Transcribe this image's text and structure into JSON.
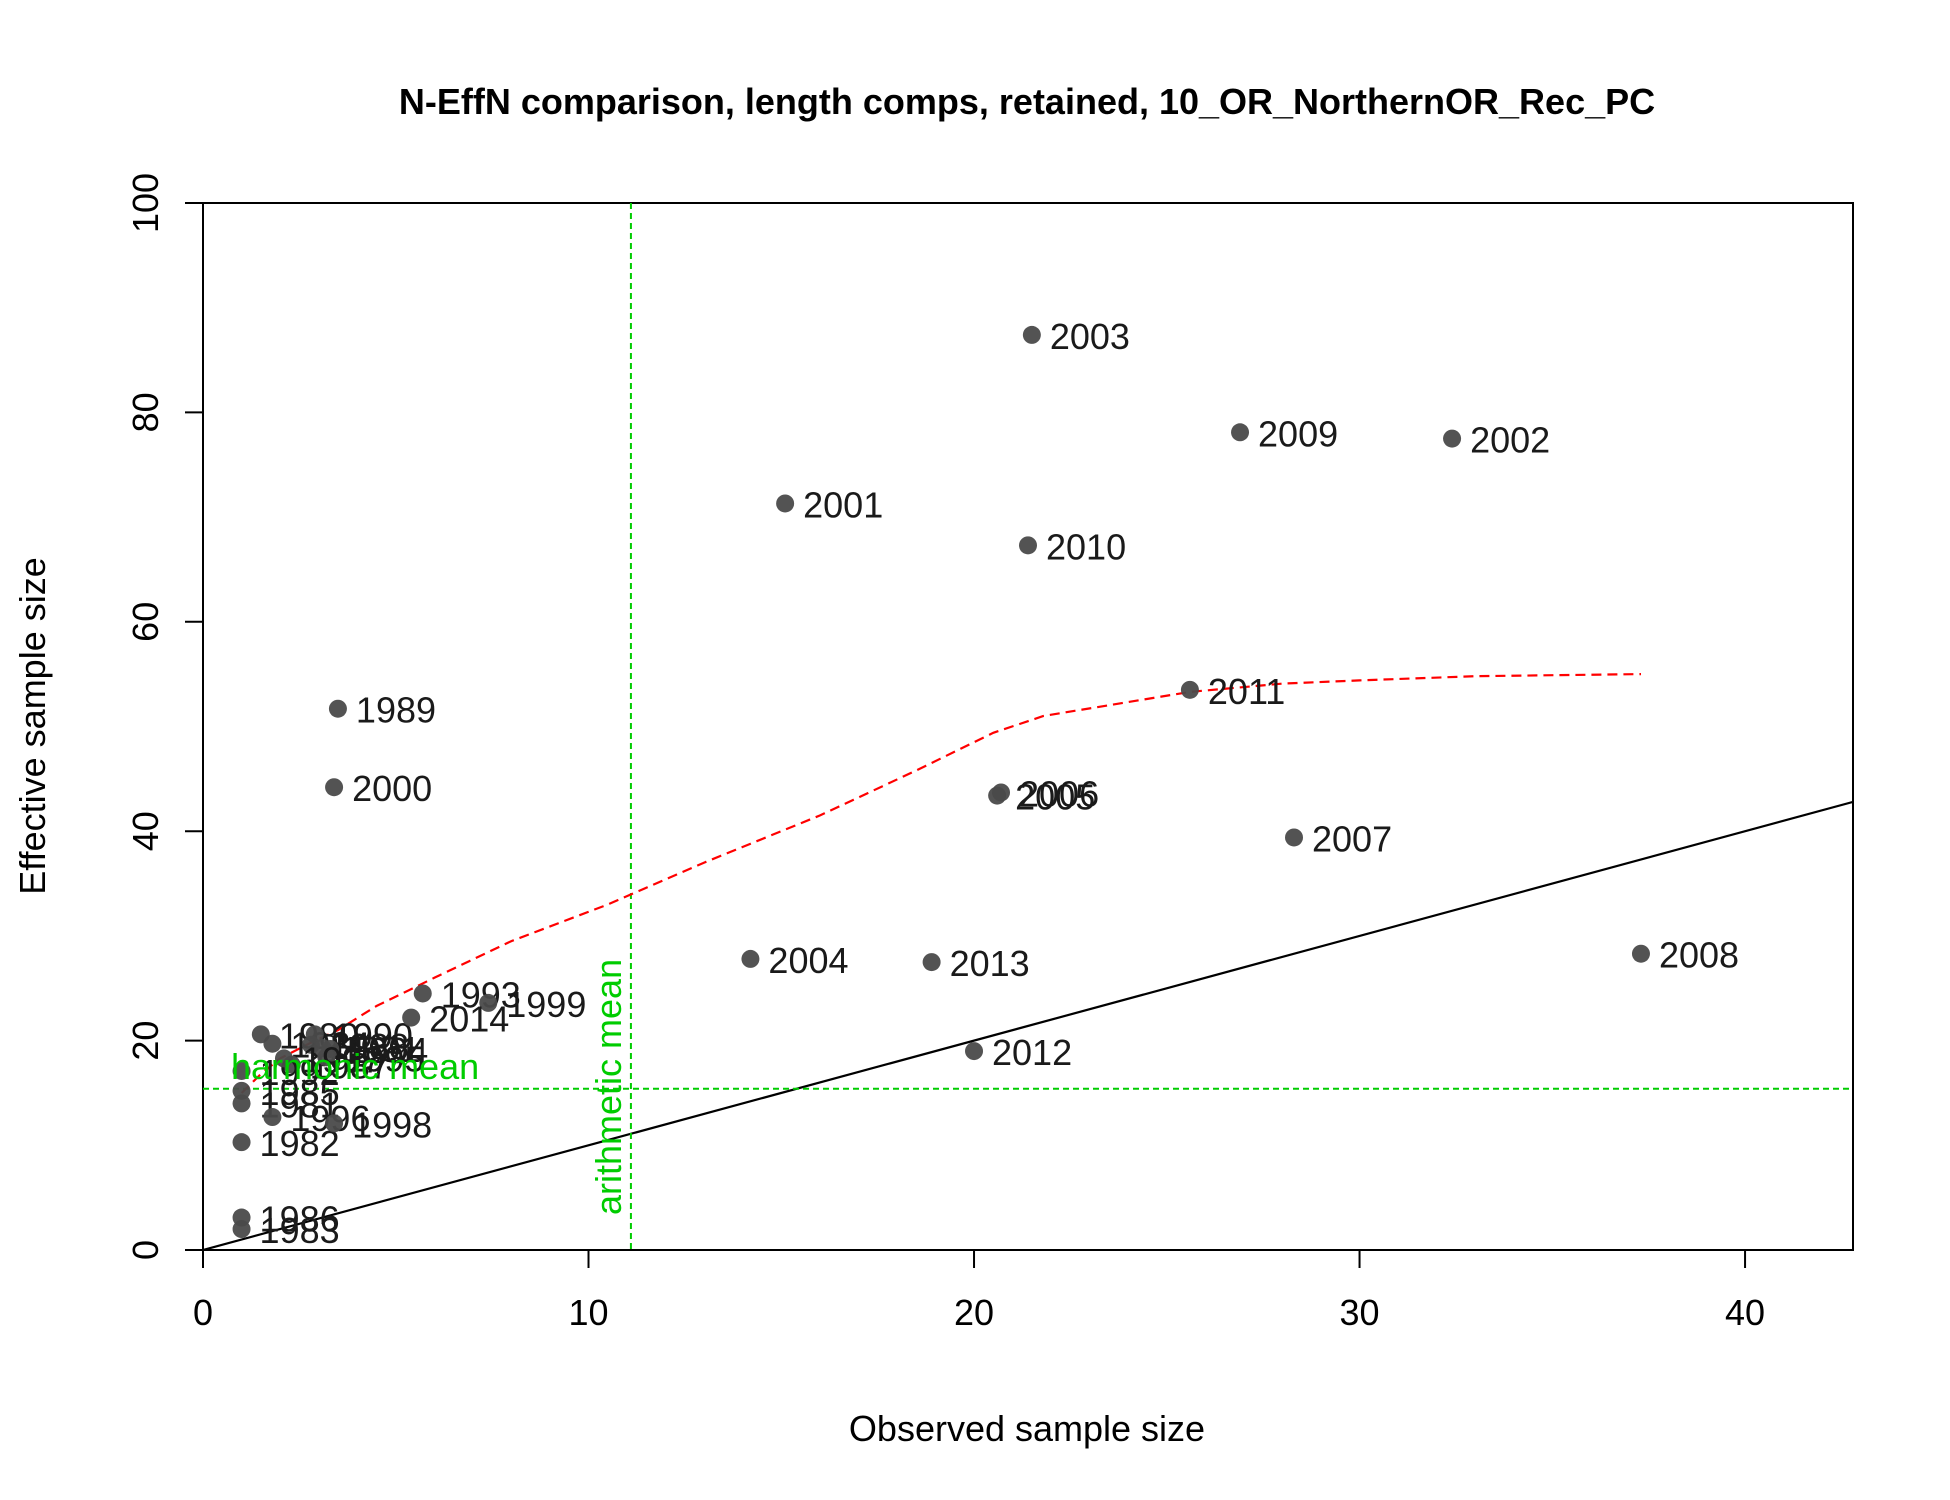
{
  "chart_data": {
    "type": "scatter",
    "title": "N-EffN comparison, length comps, retained, 10_OR_NorthernOR_Rec_PC",
    "xlabel": "Observed sample size",
    "ylabel": "Effective sample size",
    "xlim": [
      0,
      42.8
    ],
    "ylim": [
      0,
      100
    ],
    "xticks": [
      0,
      10,
      20,
      30,
      40
    ],
    "yticks": [
      0,
      20,
      40,
      60,
      80,
      100
    ],
    "colors": {
      "point": "#4a4a4a",
      "identity_line": "#000000",
      "smoother": "#ff0000",
      "reference": "#00cc00"
    },
    "points": [
      {
        "label": "1980",
        "x": 1.5,
        "y": 20.6
      },
      {
        "label": "1981",
        "x": 1.0,
        "y": 14.0
      },
      {
        "label": "1982",
        "x": 1.0,
        "y": 10.3
      },
      {
        "label": "1983",
        "x": 1.0,
        "y": 2.0
      },
      {
        "label": "1984",
        "x": 1.8,
        "y": 19.7
      },
      {
        "label": "1985",
        "x": 1.0,
        "y": 15.2
      },
      {
        "label": "1986",
        "x": 1.0,
        "y": 3.1
      },
      {
        "label": "1987",
        "x": 2.3,
        "y": 17.7
      },
      {
        "label": "1988",
        "x": 2.8,
        "y": 19.6
      },
      {
        "label": "1989",
        "x": 3.5,
        "y": 51.7
      },
      {
        "label": "1990",
        "x": 2.9,
        "y": 20.6
      },
      {
        "label": "1991",
        "x": 3.1,
        "y": 19.3
      },
      {
        "label": "1992",
        "x": 1.0,
        "y": 17.1
      },
      {
        "label": "1993",
        "x": 5.7,
        "y": 24.5
      },
      {
        "label": "1994",
        "x": 3.3,
        "y": 19.2
      },
      {
        "label": "1995",
        "x": 3.2,
        "y": 18.4
      },
      {
        "label": "1996",
        "x": 1.8,
        "y": 12.7
      },
      {
        "label": "1997",
        "x": 2.1,
        "y": 18.3
      },
      {
        "label": "1998",
        "x": 3.4,
        "y": 12.1
      },
      {
        "label": "1999",
        "x": 7.4,
        "y": 23.6
      },
      {
        "label": "2000",
        "x": 3.4,
        "y": 44.2
      },
      {
        "label": "2001",
        "x": 15.1,
        "y": 71.3
      },
      {
        "label": "2002",
        "x": 32.4,
        "y": 77.5
      },
      {
        "label": "2003",
        "x": 21.5,
        "y": 87.4
      },
      {
        "label": "2004",
        "x": 14.2,
        "y": 27.8
      },
      {
        "label": "2005",
        "x": 20.6,
        "y": 43.4
      },
      {
        "label": "2006",
        "x": 20.7,
        "y": 43.7
      },
      {
        "label": "2007",
        "x": 28.3,
        "y": 39.4
      },
      {
        "label": "2008",
        "x": 37.3,
        "y": 28.3
      },
      {
        "label": "2009",
        "x": 26.9,
        "y": 78.1
      },
      {
        "label": "2010",
        "x": 21.4,
        "y": 67.3
      },
      {
        "label": "2011",
        "x": 25.6,
        "y": 53.5
      },
      {
        "label": "2012",
        "x": 20.0,
        "y": 19.0
      },
      {
        "label": "2013",
        "x": 18.9,
        "y": 27.5
      },
      {
        "label": "2014",
        "x": 5.4,
        "y": 22.2
      }
    ],
    "identity_line": {
      "from": [
        0,
        0
      ],
      "to": [
        42.8,
        42.8
      ]
    },
    "smoother": [
      [
        1.0,
        15.0
      ],
      [
        1.5,
        16.8
      ],
      [
        2.0,
        18.3
      ],
      [
        2.8,
        19.8
      ],
      [
        3.5,
        21.0
      ],
      [
        4.5,
        23.3
      ],
      [
        6.0,
        26.0
      ],
      [
        8.0,
        29.5
      ],
      [
        10.5,
        33.0
      ],
      [
        13.0,
        37.0
      ],
      [
        16.0,
        41.5
      ],
      [
        18.5,
        45.8
      ],
      [
        20.5,
        49.4
      ],
      [
        21.8,
        51.0
      ],
      [
        25.6,
        53.3
      ],
      [
        28.0,
        54.1
      ],
      [
        30.0,
        54.4
      ],
      [
        33.0,
        54.8
      ],
      [
        37.3,
        55.0
      ]
    ],
    "harmonic_mean": {
      "label": "harmonic mean",
      "value": 15.4
    },
    "arithmetic_mean": {
      "label": "arithmetic mean",
      "value": 11.1
    }
  }
}
